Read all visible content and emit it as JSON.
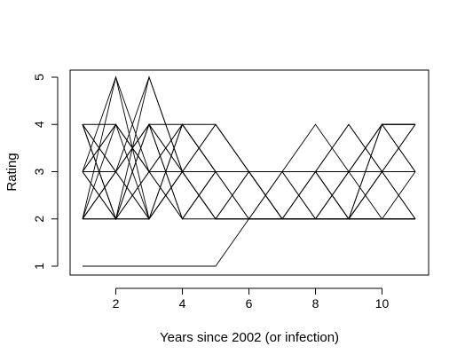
{
  "chart_data": {
    "type": "line",
    "title": "",
    "xlabel": "Years since 2002 (or infection)",
    "ylabel": "Rating",
    "xlim": [
      1,
      11
    ],
    "ylim": [
      1,
      5
    ],
    "x_ticks": [
      2,
      4,
      6,
      8,
      10
    ],
    "y_ticks": [
      1,
      2,
      3,
      4,
      5
    ],
    "x": [
      1,
      2,
      3,
      4,
      5,
      6,
      7,
      8,
      9,
      10,
      11
    ],
    "grid": false,
    "legend": "none",
    "series": [
      {
        "values": [
          1,
          1,
          1,
          1,
          1,
          2,
          2,
          2,
          2,
          2,
          2
        ]
      },
      {
        "values": [
          2,
          5,
          3,
          3,
          3,
          3,
          3,
          3,
          3,
          3,
          3
        ]
      },
      {
        "values": [
          2,
          3,
          5,
          3,
          2,
          2,
          2,
          2,
          2,
          2,
          2
        ]
      },
      {
        "values": [
          4,
          2,
          5,
          3,
          3,
          3,
          3,
          3,
          3,
          3,
          3
        ]
      },
      {
        "values": [
          3,
          5,
          2,
          4,
          3,
          2,
          3,
          2,
          3,
          4,
          3
        ]
      },
      {
        "values": [
          4,
          3,
          2,
          3,
          4,
          3,
          2,
          3,
          2,
          3,
          4
        ]
      },
      {
        "values": [
          2,
          4,
          3,
          2,
          3,
          3,
          3,
          3,
          3,
          2,
          2
        ]
      },
      {
        "values": [
          3,
          2,
          4,
          3,
          2,
          3,
          2,
          3,
          2,
          4,
          3
        ]
      },
      {
        "values": [
          2,
          3,
          4,
          2,
          3,
          3,
          2,
          3,
          4,
          3,
          2
        ]
      },
      {
        "values": [
          4,
          4,
          3,
          4,
          3,
          3,
          3,
          4,
          3,
          3,
          4
        ]
      },
      {
        "values": [
          3,
          3,
          4,
          4,
          3,
          2,
          3,
          2,
          2,
          3,
          3
        ]
      },
      {
        "values": [
          4,
          3,
          4,
          2,
          2,
          3,
          3,
          3,
          2,
          2,
          2
        ]
      },
      {
        "values": [
          2,
          2,
          3,
          2,
          3,
          3,
          2,
          2,
          3,
          4,
          4
        ]
      },
      {
        "values": [
          3,
          4,
          3,
          3,
          4,
          3,
          3,
          3,
          4,
          3,
          3
        ]
      },
      {
        "values": [
          4,
          2,
          2,
          3,
          2,
          2,
          2,
          2,
          2,
          4,
          4
        ]
      },
      {
        "values": [
          2,
          2,
          2,
          4,
          3,
          3,
          3,
          3,
          3,
          3,
          3
        ]
      },
      {
        "values": [
          3,
          4,
          2,
          3,
          3,
          3,
          3,
          3,
          2,
          2,
          3
        ]
      },
      {
        "values": [
          4,
          2,
          4,
          3,
          2,
          2,
          2,
          2,
          2,
          3,
          2
        ]
      },
      {
        "values": [
          2,
          3,
          2,
          3,
          3,
          3,
          2,
          2,
          3,
          3,
          3
        ]
      },
      {
        "values": [
          3,
          2,
          3,
          4,
          4,
          3,
          3,
          3,
          3,
          4,
          4
        ]
      }
    ]
  }
}
